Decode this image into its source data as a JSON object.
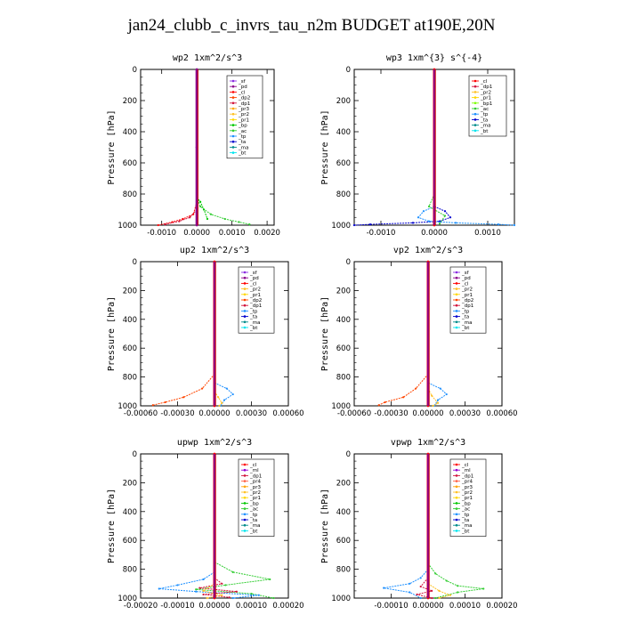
{
  "title": "jan24_clubb_c_invrs_tau_n2m  BUDGET at190E,20N",
  "colors": {
    "_sf": "#8a2be2",
    "_pd": "#8b008b",
    "_cl": "#ff0000",
    "_dp2": "#ff4500",
    "_dp1": "#d2143c",
    "_pr3": "#ffa500",
    "_pr2": "#ffc125",
    "_pr1": "#ffd700",
    "_bp": "#00c800",
    "_ac": "#32cd32",
    "_tp": "#1e90ff",
    "_ta": "#0000cd",
    "_ma": "#008b8b",
    "_bt": "#00e5ee",
    "_ml": "#9400d3",
    "_pr4": "#ff6347",
    "_bp1": "#7fff00"
  },
  "chart_data": [
    {
      "type": "line",
      "title": "wp2  1xm^2/s^3",
      "ylabel": "Pressure [hPa]",
      "xlim": [
        -0.0016,
        0.0022
      ],
      "ylim": [
        1000,
        0
      ],
      "xticks": [
        -0.001,
        0,
        0.001,
        0.002
      ],
      "xtick_labels": [
        "-0.0010",
        "0.0000",
        "0.0010",
        "0.0020"
      ],
      "yticks": [
        0,
        200,
        400,
        600,
        800,
        1000
      ],
      "ytick_labels": [
        "0",
        "200",
        "400",
        "600",
        "800",
        "1000"
      ],
      "legend": [
        "_sf",
        "_pd",
        "_cl",
        "_dp2",
        "_dp1",
        "_pr3",
        "_pr2",
        "_pr1",
        "_bp",
        "_ac",
        "_tp",
        "_ta",
        "_ma",
        "_bt"
      ],
      "series": [
        {
          "name": "_cl",
          "x": [
            0,
            -0.0001,
            -0.0004,
            -0.0007,
            -0.0011
          ],
          "y": [
            850,
            930,
            960,
            980,
            1000
          ]
        },
        {
          "name": "_dp1",
          "x": [
            0,
            -0.0002,
            -0.0005,
            -0.0009
          ],
          "y": [
            900,
            950,
            975,
            995
          ]
        },
        {
          "name": "_ac",
          "x": [
            0,
            0.0001,
            0.0004,
            0.0008,
            0.0012,
            0.0015
          ],
          "y": [
            820,
            880,
            930,
            960,
            980,
            995
          ]
        },
        {
          "name": "_bp",
          "x": [
            0,
            0.0001,
            0.0002,
            0.0003
          ],
          "y": [
            820,
            850,
            900,
            960
          ]
        },
        {
          "name": "_pd",
          "x": [
            0,
            0,
            0
          ],
          "y": [
            0,
            500,
            1000
          ]
        }
      ]
    },
    {
      "type": "line",
      "title": "wp3  1xm^{3} s^{-4}",
      "ylabel": "Pressure [hPa]",
      "xlim": [
        -0.0015,
        0.0015
      ],
      "ylim": [
        1000,
        0
      ],
      "xticks": [
        -0.001,
        0,
        0.001
      ],
      "xtick_labels": [
        "-0.0010",
        "0.0000",
        "0.0010"
      ],
      "yticks": [
        0,
        200,
        400,
        600,
        800,
        1000
      ],
      "ytick_labels": [
        "0",
        "200",
        "400",
        "600",
        "800",
        "1000"
      ],
      "legend": [
        "_cl",
        "_dp1",
        "_pr2",
        "_pr1",
        "_bp1",
        "_ac",
        "_tp",
        "_ta",
        "_ma",
        "_bt"
      ],
      "series": [
        {
          "name": "_ta",
          "x": [
            0,
            0.0002,
            0.0003,
            0.0001,
            -0.0004,
            -0.0012,
            -0.0015
          ],
          "y": [
            880,
            910,
            950,
            975,
            985,
            995,
            1000
          ]
        },
        {
          "name": "_tp",
          "x": [
            0,
            -0.0002,
            -0.0003,
            -0.0001,
            0.0004,
            0.0012,
            0.0015
          ],
          "y": [
            880,
            910,
            950,
            975,
            985,
            995,
            1000
          ]
        },
        {
          "name": "_ac",
          "x": [
            0,
            -0.0001,
            0.0002,
            0.0001
          ],
          "y": [
            800,
            880,
            940,
            990
          ]
        },
        {
          "name": "_cl",
          "x": [
            0,
            0,
            0
          ],
          "y": [
            0,
            500,
            1000
          ]
        }
      ]
    },
    {
      "type": "line",
      "title": "up2  1xm^2/s^3",
      "ylabel": "Pressure [hPa]",
      "xlim": [
        -0.0006,
        0.0006
      ],
      "ylim": [
        1000,
        0
      ],
      "xticks": [
        -0.0006,
        -0.0003,
        0,
        0.0003,
        0.0006
      ],
      "xtick_labels": [
        "-0.00060",
        "-0.00030",
        "0.00000",
        "0.00030",
        "0.00060"
      ],
      "yticks": [
        0,
        200,
        400,
        600,
        800,
        1000
      ],
      "ytick_labels": [
        "0",
        "200",
        "400",
        "600",
        "800",
        "1000"
      ],
      "legend": [
        "_sf",
        "_pd",
        "_cl",
        "_pr2",
        "_pr1",
        "_dp2",
        "_dp1",
        "_tp",
        "_ta",
        "_ma",
        "_bt"
      ],
      "series": [
        {
          "name": "_dp2",
          "x": [
            0,
            -0.0001,
            -0.00025,
            -0.0004,
            -0.0005
          ],
          "y": [
            780,
            880,
            940,
            975,
            995
          ]
        },
        {
          "name": "_tp",
          "x": [
            0,
            0.0001,
            0.00015,
            8e-05,
            5e-05
          ],
          "y": [
            840,
            880,
            920,
            960,
            1000
          ]
        },
        {
          "name": "_pr2",
          "x": [
            0,
            3e-05,
            6e-05,
            4e-05
          ],
          "y": [
            900,
            940,
            980,
            1000
          ]
        },
        {
          "name": "_cl",
          "x": [
            0,
            0,
            0
          ],
          "y": [
            0,
            500,
            1000
          ]
        }
      ]
    },
    {
      "type": "line",
      "title": "vp2  1xm^2/s^3",
      "ylabel": "Pressure [hPa]",
      "xlim": [
        -0.0006,
        0.0006
      ],
      "ylim": [
        1000,
        0
      ],
      "xticks": [
        -0.0006,
        -0.0003,
        0,
        0.0003,
        0.0006
      ],
      "xtick_labels": [
        "-0.00060",
        "-0.00030",
        "0.00000",
        "0.00030",
        "0.00060"
      ],
      "yticks": [
        0,
        200,
        400,
        600,
        800,
        1000
      ],
      "ytick_labels": [
        "0",
        "200",
        "400",
        "600",
        "800",
        "1000"
      ],
      "legend": [
        "_sf",
        "_pd",
        "_cl",
        "_pr2",
        "_pr1",
        "_dp2",
        "_dp1",
        "_tp",
        "_ta",
        "_ma",
        "_bt"
      ],
      "series": [
        {
          "name": "_dp2",
          "x": [
            0,
            -0.0001,
            -0.0002,
            -0.00035,
            -0.0004
          ],
          "y": [
            780,
            880,
            940,
            975,
            995
          ]
        },
        {
          "name": "_tp",
          "x": [
            0,
            0.0001,
            0.00015,
            8e-05,
            5e-05
          ],
          "y": [
            840,
            880,
            920,
            960,
            1000
          ]
        },
        {
          "name": "_pr2",
          "x": [
            0,
            3e-05,
            8e-05,
            4e-05
          ],
          "y": [
            880,
            930,
            980,
            1000
          ]
        },
        {
          "name": "_cl",
          "x": [
            0,
            0,
            0
          ],
          "y": [
            0,
            500,
            1000
          ]
        }
      ]
    },
    {
      "type": "line",
      "title": "upwp  1xm^2/s^3",
      "ylabel": "Pressure [hPa]",
      "xlim": [
        -0.0002,
        0.0002
      ],
      "ylim": [
        1000,
        0
      ],
      "xticks": [
        -0.0002,
        -0.0001,
        0,
        0.0001,
        0.0002
      ],
      "xtick_labels": [
        "-0.00020",
        "-0.00010",
        "0.00000",
        "0.00010",
        "0.00020"
      ],
      "yticks": [
        0,
        200,
        400,
        600,
        800,
        1000
      ],
      "ytick_labels": [
        "0",
        "200",
        "400",
        "600",
        "800",
        "1000"
      ],
      "legend": [
        "_cl",
        "_ml",
        "_dp1",
        "_pr4",
        "_pr3",
        "_pr2",
        "_pr1",
        "_bp",
        "_ac",
        "_tp",
        "_ta",
        "_ma",
        "_bt"
      ],
      "series": [
        {
          "name": "_ac",
          "x": [
            0,
            5e-05,
            0.00015,
            3e-05,
            -5e-05,
            0.0001,
            0.00016
          ],
          "y": [
            750,
            820,
            870,
            910,
            940,
            970,
            1000
          ]
        },
        {
          "name": "_tp",
          "x": [
            0,
            -3e-05,
            -0.0001,
            -0.00015,
            -5e-05,
            0.00012,
            5e-05
          ],
          "y": [
            820,
            870,
            910,
            935,
            955,
            980,
            1000
          ]
        },
        {
          "name": "_dp1",
          "x": [
            0,
            2e-05,
            -4e-05,
            6e-05,
            -3e-05,
            4e-05
          ],
          "y": [
            860,
            900,
            930,
            955,
            975,
            995
          ]
        },
        {
          "name": "_pr2",
          "x": [
            0,
            -3e-05,
            2e-05,
            -2e-05
          ],
          "y": [
            900,
            950,
            980,
            1000
          ]
        },
        {
          "name": "_cl",
          "x": [
            0,
            0,
            0
          ],
          "y": [
            0,
            500,
            1000
          ]
        }
      ]
    },
    {
      "type": "line",
      "title": "vpwp  1xm^2/s^3",
      "ylabel": "Pressure [hPa]",
      "xlim": [
        -0.0002,
        0.0002
      ],
      "ylim": [
        1000,
        0
      ],
      "xticks": [
        -0.0001,
        0,
        0.0001,
        0.0002
      ],
      "xtick_labels": [
        "-0.00010",
        "0.00000",
        "0.00010",
        "0.00020"
      ],
      "yticks": [
        0,
        200,
        400,
        600,
        800,
        1000
      ],
      "ytick_labels": [
        "0",
        "200",
        "400",
        "600",
        "800",
        "1000"
      ],
      "legend": [
        "_cl",
        "_ml",
        "_dp1",
        "_pr4",
        "_pr3",
        "_pr2",
        "_pr1",
        "_bp",
        "_ac",
        "_tp",
        "_ta",
        "_ma",
        "_bt"
      ],
      "series": [
        {
          "name": "_ac",
          "x": [
            0,
            2e-05,
            5e-05,
            8e-05,
            0.00015,
            8e-05,
            2e-05
          ],
          "y": [
            760,
            830,
            880,
            915,
            935,
            960,
            1000
          ]
        },
        {
          "name": "_tp",
          "x": [
            0,
            -2e-05,
            -5e-05,
            -0.00012,
            -5e-05,
            -2e-05
          ],
          "y": [
            800,
            860,
            900,
            930,
            960,
            1000
          ]
        },
        {
          "name": "_dp1",
          "x": [
            0,
            -2e-05,
            1e-05,
            -3e-05,
            1e-05
          ],
          "y": [
            860,
            920,
            950,
            975,
            1000
          ]
        },
        {
          "name": "_pr2",
          "x": [
            0,
            3e-05,
            6e-05,
            3e-05
          ],
          "y": [
            900,
            950,
            980,
            1000
          ]
        },
        {
          "name": "_cl",
          "x": [
            0,
            0,
            0
          ],
          "y": [
            0,
            500,
            1000
          ]
        }
      ]
    }
  ]
}
